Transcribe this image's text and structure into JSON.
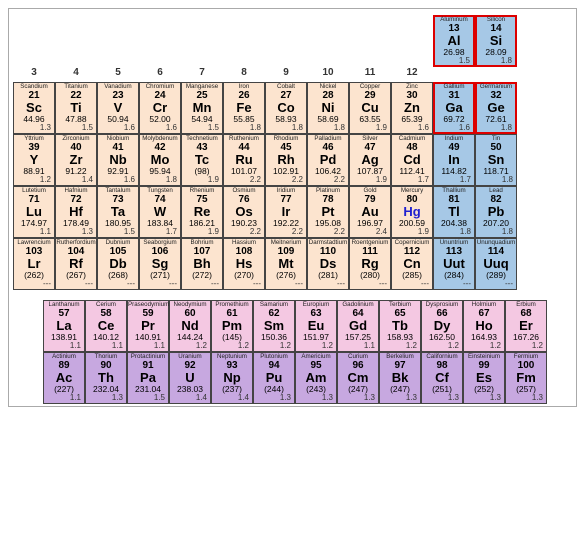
{
  "colors": {
    "peach": "#fce4cf",
    "blue": "#a6c8e6",
    "pink": "#f4c8e2",
    "purple": "#c7a8e0",
    "highlight_border": "#d00",
    "hg_symbol": "#2020d0"
  },
  "group_headers": [
    "3",
    "4",
    "5",
    "6",
    "7",
    "8",
    "9",
    "10",
    "11",
    "12"
  ],
  "top_right": [
    {
      "name": "Aluminum",
      "num": "13",
      "sym": "Al",
      "mass": "26.98",
      "eneg": "1.5",
      "cls": "c-blue highlight-red"
    },
    {
      "name": "Silicon",
      "num": "14",
      "sym": "Si",
      "mass": "28.09",
      "eneg": "1.8",
      "cls": "c-blue highlight-red"
    }
  ],
  "main_rows": [
    [
      {
        "name": "Scandium",
        "num": "21",
        "sym": "Sc",
        "mass": "44.96",
        "eneg": "1.3",
        "cls": "c-peach"
      },
      {
        "name": "Titanium",
        "num": "22",
        "sym": "Ti",
        "mass": "47.88",
        "eneg": "1.5",
        "cls": "c-peach"
      },
      {
        "name": "Vanadium",
        "num": "23",
        "sym": "V",
        "mass": "50.94",
        "eneg": "1.6",
        "cls": "c-peach"
      },
      {
        "name": "Chromium",
        "num": "24",
        "sym": "Cr",
        "mass": "52.00",
        "eneg": "1.6",
        "cls": "c-peach"
      },
      {
        "name": "Manganese",
        "num": "25",
        "sym": "Mn",
        "mass": "54.94",
        "eneg": "1.5",
        "cls": "c-peach"
      },
      {
        "name": "Iron",
        "num": "26",
        "sym": "Fe",
        "mass": "55.85",
        "eneg": "1.8",
        "cls": "c-peach"
      },
      {
        "name": "Cobalt",
        "num": "27",
        "sym": "Co",
        "mass": "58.93",
        "eneg": "1.8",
        "cls": "c-peach"
      },
      {
        "name": "Nickel",
        "num": "28",
        "sym": "Ni",
        "mass": "58.69",
        "eneg": "1.8",
        "cls": "c-peach"
      },
      {
        "name": "Copper",
        "num": "29",
        "sym": "Cu",
        "mass": "63.55",
        "eneg": "1.9",
        "cls": "c-peach"
      },
      {
        "name": "Zinc",
        "num": "30",
        "sym": "Zn",
        "mass": "65.39",
        "eneg": "1.6",
        "cls": "c-peach"
      },
      {
        "name": "Gallium",
        "num": "31",
        "sym": "Ga",
        "mass": "69.72",
        "eneg": "1.6",
        "cls": "c-blue highlight-red"
      },
      {
        "name": "Germanium",
        "num": "32",
        "sym": "Ge",
        "mass": "72.61",
        "eneg": "1.8",
        "cls": "c-blue highlight-red"
      }
    ],
    [
      {
        "name": "Yttrium",
        "num": "39",
        "sym": "Y",
        "mass": "88.91",
        "eneg": "1.2",
        "cls": "c-peach"
      },
      {
        "name": "Zirconium",
        "num": "40",
        "sym": "Zr",
        "mass": "91.22",
        "eneg": "1.4",
        "cls": "c-peach"
      },
      {
        "name": "Niobium",
        "num": "41",
        "sym": "Nb",
        "mass": "92.91",
        "eneg": "1.6",
        "cls": "c-peach"
      },
      {
        "name": "Molybdenum",
        "num": "42",
        "sym": "Mo",
        "mass": "95.94",
        "eneg": "1.8",
        "cls": "c-peach"
      },
      {
        "name": "Technetium",
        "num": "43",
        "sym": "Tc",
        "mass": "(98)",
        "eneg": "1.9",
        "cls": "c-peach"
      },
      {
        "name": "Ruthenium",
        "num": "44",
        "sym": "Ru",
        "mass": "101.07",
        "eneg": "2.2",
        "cls": "c-peach"
      },
      {
        "name": "Rhodium",
        "num": "45",
        "sym": "Rh",
        "mass": "102.91",
        "eneg": "2.2",
        "cls": "c-peach"
      },
      {
        "name": "Palladium",
        "num": "46",
        "sym": "Pd",
        "mass": "106.42",
        "eneg": "2.2",
        "cls": "c-peach"
      },
      {
        "name": "Silver",
        "num": "47",
        "sym": "Ag",
        "mass": "107.87",
        "eneg": "1.9",
        "cls": "c-peach"
      },
      {
        "name": "Cadmium",
        "num": "48",
        "sym": "Cd",
        "mass": "112.41",
        "eneg": "1.7",
        "cls": "c-peach"
      },
      {
        "name": "Indium",
        "num": "49",
        "sym": "In",
        "mass": "114.82",
        "eneg": "1.7",
        "cls": "c-blue"
      },
      {
        "name": "Tin",
        "num": "50",
        "sym": "Sn",
        "mass": "118.71",
        "eneg": "1.8",
        "cls": "c-blue"
      }
    ],
    [
      {
        "name": "Lutetium",
        "num": "71",
        "sym": "Lu",
        "mass": "174.97",
        "eneg": "1.1",
        "cls": "c-peach"
      },
      {
        "name": "Hafnium",
        "num": "72",
        "sym": "Hf",
        "mass": "178.49",
        "eneg": "1.3",
        "cls": "c-peach"
      },
      {
        "name": "Tantalum",
        "num": "73",
        "sym": "Ta",
        "mass": "180.95",
        "eneg": "1.5",
        "cls": "c-peach"
      },
      {
        "name": "Tungsten",
        "num": "74",
        "sym": "W",
        "mass": "183.84",
        "eneg": "1.7",
        "cls": "c-peach"
      },
      {
        "name": "Rhenium",
        "num": "75",
        "sym": "Re",
        "mass": "186.21",
        "eneg": "1.9",
        "cls": "c-peach"
      },
      {
        "name": "Osmium",
        "num": "76",
        "sym": "Os",
        "mass": "190.23",
        "eneg": "2.2",
        "cls": "c-peach"
      },
      {
        "name": "Iridium",
        "num": "77",
        "sym": "Ir",
        "mass": "192.22",
        "eneg": "2.2",
        "cls": "c-peach"
      },
      {
        "name": "Platinum",
        "num": "78",
        "sym": "Pt",
        "mass": "195.08",
        "eneg": "2.2",
        "cls": "c-peach"
      },
      {
        "name": "Gold",
        "num": "79",
        "sym": "Au",
        "mass": "196.97",
        "eneg": "2.4",
        "cls": "c-peach"
      },
      {
        "name": "Mercury",
        "num": "80",
        "sym": "Hg",
        "mass": "200.59",
        "eneg": "1.9",
        "cls": "c-peach",
        "sym_cls": "sym-hg"
      },
      {
        "name": "Thallium",
        "num": "81",
        "sym": "Tl",
        "mass": "204.38",
        "eneg": "1.8",
        "cls": "c-blue"
      },
      {
        "name": "Lead",
        "num": "82",
        "sym": "Pb",
        "mass": "207.20",
        "eneg": "1.8",
        "cls": "c-blue"
      }
    ],
    [
      {
        "name": "Lawrencium",
        "num": "103",
        "sym": "Lr",
        "mass": "(262)",
        "eneg": "---",
        "cls": "c-peach"
      },
      {
        "name": "Rutherfordium",
        "num": "104",
        "sym": "Rf",
        "mass": "(267)",
        "eneg": "---",
        "cls": "c-peach"
      },
      {
        "name": "Dubnium",
        "num": "105",
        "sym": "Db",
        "mass": "(268)",
        "eneg": "---",
        "cls": "c-peach"
      },
      {
        "name": "Seaborgium",
        "num": "106",
        "sym": "Sg",
        "mass": "(271)",
        "eneg": "---",
        "cls": "c-peach"
      },
      {
        "name": "Bohrium",
        "num": "107",
        "sym": "Bh",
        "mass": "(272)",
        "eneg": "---",
        "cls": "c-peach"
      },
      {
        "name": "Hassium",
        "num": "108",
        "sym": "Hs",
        "mass": "(270)",
        "eneg": "---",
        "cls": "c-peach"
      },
      {
        "name": "Meitnerium",
        "num": "109",
        "sym": "Mt",
        "mass": "(276)",
        "eneg": "---",
        "cls": "c-peach"
      },
      {
        "name": "Darmstadtium",
        "num": "110",
        "sym": "Ds",
        "mass": "(281)",
        "eneg": "---",
        "cls": "c-peach"
      },
      {
        "name": "Roentgenium",
        "num": "111",
        "sym": "Rg",
        "mass": "(280)",
        "eneg": "---",
        "cls": "c-peach"
      },
      {
        "name": "Copernicium",
        "num": "112",
        "sym": "Cn",
        "mass": "(285)",
        "eneg": "---",
        "cls": "c-peach"
      },
      {
        "name": "Ununtrium",
        "num": "113",
        "sym": "Uut",
        "mass": "(284)",
        "eneg": "---",
        "cls": "c-blue"
      },
      {
        "name": "Ununquadium",
        "num": "114",
        "sym": "Uuq",
        "mass": "(289)",
        "eneg": "---",
        "cls": "c-blue"
      }
    ]
  ],
  "lanthanides": [
    {
      "name": "Lanthanum",
      "num": "57",
      "sym": "La",
      "mass": "138.91",
      "eneg": "1.1",
      "cls": "c-pink"
    },
    {
      "name": "Cerium",
      "num": "58",
      "sym": "Ce",
      "mass": "140.12",
      "eneg": "1.1",
      "cls": "c-pink"
    },
    {
      "name": "Praseodymium",
      "num": "59",
      "sym": "Pr",
      "mass": "140.91",
      "eneg": "1.1",
      "cls": "c-pink"
    },
    {
      "name": "Neodymium",
      "num": "60",
      "sym": "Nd",
      "mass": "144.24",
      "eneg": "1.2",
      "cls": "c-pink"
    },
    {
      "name": "Promethium",
      "num": "61",
      "sym": "Pm",
      "mass": "(145)",
      "eneg": "1.2",
      "cls": "c-pink"
    },
    {
      "name": "Samarium",
      "num": "62",
      "sym": "Sm",
      "mass": "150.36",
      "eneg": "1.2",
      "cls": "c-pink"
    },
    {
      "name": "Europium",
      "num": "63",
      "sym": "Eu",
      "mass": "151.97",
      "eneg": "1.2",
      "cls": "c-pink"
    },
    {
      "name": "Gadolinium",
      "num": "64",
      "sym": "Gd",
      "mass": "157.25",
      "eneg": "1.1",
      "cls": "c-pink"
    },
    {
      "name": "Terbium",
      "num": "65",
      "sym": "Tb",
      "mass": "158.93",
      "eneg": "1.2",
      "cls": "c-pink"
    },
    {
      "name": "Dysprosium",
      "num": "66",
      "sym": "Dy",
      "mass": "162.50",
      "eneg": "1.2",
      "cls": "c-pink"
    },
    {
      "name": "Holmium",
      "num": "67",
      "sym": "Ho",
      "mass": "164.93",
      "eneg": "1.2",
      "cls": "c-pink"
    },
    {
      "name": "Erbium",
      "num": "68",
      "sym": "Er",
      "mass": "167.26",
      "eneg": "1.2",
      "cls": "c-pink"
    }
  ],
  "actinides": [
    {
      "name": "Actinium",
      "num": "89",
      "sym": "Ac",
      "mass": "(227)",
      "eneg": "1.1",
      "cls": "c-purple"
    },
    {
      "name": "Thorium",
      "num": "90",
      "sym": "Th",
      "mass": "232.04",
      "eneg": "1.3",
      "cls": "c-purple"
    },
    {
      "name": "Protactinium",
      "num": "91",
      "sym": "Pa",
      "mass": "231.04",
      "eneg": "1.5",
      "cls": "c-purple"
    },
    {
      "name": "Uranium",
      "num": "92",
      "sym": "U",
      "mass": "238.03",
      "eneg": "1.4",
      "cls": "c-purple"
    },
    {
      "name": "Neptunium",
      "num": "93",
      "sym": "Np",
      "mass": "(237)",
      "eneg": "1.4",
      "cls": "c-purple"
    },
    {
      "name": "Plutonium",
      "num": "94",
      "sym": "Pu",
      "mass": "(244)",
      "eneg": "1.3",
      "cls": "c-purple"
    },
    {
      "name": "Americium",
      "num": "95",
      "sym": "Am",
      "mass": "(243)",
      "eneg": "1.3",
      "cls": "c-purple"
    },
    {
      "name": "Curium",
      "num": "96",
      "sym": "Cm",
      "mass": "(247)",
      "eneg": "1.3",
      "cls": "c-purple"
    },
    {
      "name": "Berkelium",
      "num": "97",
      "sym": "Bk",
      "mass": "(247)",
      "eneg": "1.3",
      "cls": "c-purple"
    },
    {
      "name": "Californium",
      "num": "98",
      "sym": "Cf",
      "mass": "(251)",
      "eneg": "1.3",
      "cls": "c-purple"
    },
    {
      "name": "Einsteinium",
      "num": "99",
      "sym": "Es",
      "mass": "(252)",
      "eneg": "1.3",
      "cls": "c-purple"
    },
    {
      "name": "Fermium",
      "num": "100",
      "sym": "Fm",
      "mass": "(257)",
      "eneg": "1.3",
      "cls": "c-purple"
    }
  ]
}
